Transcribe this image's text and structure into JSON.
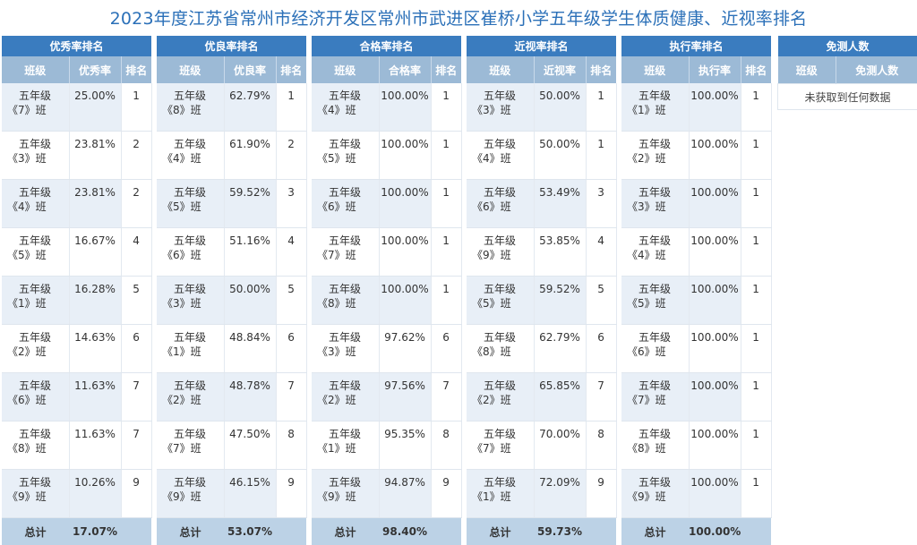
{
  "title": "2023年度江苏省常州市经济开发区常州市武进区崔桥小学五年级学生体质健康、近视率排名",
  "colors": {
    "header": "#3a7cbf",
    "subheader": "#9cbad6",
    "total": "#bcd2e6",
    "title": "#2b70b8"
  },
  "panels": [
    {
      "header": "优秀率排名",
      "col1": "班级",
      "col2": "优秀率",
      "col3": "排名",
      "rows": [
        {
          "grade": "五年级",
          "cls": "《7》班",
          "value": "25.00%",
          "rank": "1"
        },
        {
          "grade": "五年级",
          "cls": "《3》班",
          "value": "23.81%",
          "rank": "2"
        },
        {
          "grade": "五年级",
          "cls": "《4》班",
          "value": "23.81%",
          "rank": "2"
        },
        {
          "grade": "五年级",
          "cls": "《5》班",
          "value": "16.67%",
          "rank": "4"
        },
        {
          "grade": "五年级",
          "cls": "《1》班",
          "value": "16.28%",
          "rank": "5"
        },
        {
          "grade": "五年级",
          "cls": "《2》班",
          "value": "14.63%",
          "rank": "6"
        },
        {
          "grade": "五年级",
          "cls": "《6》班",
          "value": "11.63%",
          "rank": "7"
        },
        {
          "grade": "五年级",
          "cls": "《8》班",
          "value": "11.63%",
          "rank": "7"
        },
        {
          "grade": "五年级",
          "cls": "《9》班",
          "value": "10.26%",
          "rank": "9"
        }
      ],
      "total_label": "总计",
      "total_value": "17.07%"
    },
    {
      "header": "优良率排名",
      "col1": "班级",
      "col2": "优良率",
      "col3": "排名",
      "rows": [
        {
          "grade": "五年级",
          "cls": "《8》班",
          "value": "62.79%",
          "rank": "1"
        },
        {
          "grade": "五年级",
          "cls": "《4》班",
          "value": "61.90%",
          "rank": "2"
        },
        {
          "grade": "五年级",
          "cls": "《5》班",
          "value": "59.52%",
          "rank": "3"
        },
        {
          "grade": "五年级",
          "cls": "《6》班",
          "value": "51.16%",
          "rank": "4"
        },
        {
          "grade": "五年级",
          "cls": "《3》班",
          "value": "50.00%",
          "rank": "5"
        },
        {
          "grade": "五年级",
          "cls": "《1》班",
          "value": "48.84%",
          "rank": "6"
        },
        {
          "grade": "五年级",
          "cls": "《2》班",
          "value": "48.78%",
          "rank": "7"
        },
        {
          "grade": "五年级",
          "cls": "《7》班",
          "value": "47.50%",
          "rank": "8"
        },
        {
          "grade": "五年级",
          "cls": "《9》班",
          "value": "46.15%",
          "rank": "9"
        }
      ],
      "total_label": "总计",
      "total_value": "53.07%"
    },
    {
      "header": "合格率排名",
      "col1": "班级",
      "col2": "合格率",
      "col3": "排名",
      "rows": [
        {
          "grade": "五年级",
          "cls": "《4》班",
          "value": "100.00%",
          "rank": "1"
        },
        {
          "grade": "五年级",
          "cls": "《5》班",
          "value": "100.00%",
          "rank": "1"
        },
        {
          "grade": "五年级",
          "cls": "《6》班",
          "value": "100.00%",
          "rank": "1"
        },
        {
          "grade": "五年级",
          "cls": "《7》班",
          "value": "100.00%",
          "rank": "1"
        },
        {
          "grade": "五年级",
          "cls": "《8》班",
          "value": "100.00%",
          "rank": "1"
        },
        {
          "grade": "五年级",
          "cls": "《3》班",
          "value": "97.62%",
          "rank": "6"
        },
        {
          "grade": "五年级",
          "cls": "《2》班",
          "value": "97.56%",
          "rank": "7"
        },
        {
          "grade": "五年级",
          "cls": "《1》班",
          "value": "95.35%",
          "rank": "8"
        },
        {
          "grade": "五年级",
          "cls": "《9》班",
          "value": "94.87%",
          "rank": "9"
        }
      ],
      "total_label": "总计",
      "total_value": "98.40%"
    },
    {
      "header": "近视率排名",
      "col1": "班级",
      "col2": "近视率",
      "col3": "排名",
      "rows": [
        {
          "grade": "五年级",
          "cls": "《3》班",
          "value": "50.00%",
          "rank": "1"
        },
        {
          "grade": "五年级",
          "cls": "《4》班",
          "value": "50.00%",
          "rank": "1"
        },
        {
          "grade": "五年级",
          "cls": "《6》班",
          "value": "53.49%",
          "rank": "3"
        },
        {
          "grade": "五年级",
          "cls": "《9》班",
          "value": "53.85%",
          "rank": "4"
        },
        {
          "grade": "五年级",
          "cls": "《5》班",
          "value": "59.52%",
          "rank": "5"
        },
        {
          "grade": "五年级",
          "cls": "《8》班",
          "value": "62.79%",
          "rank": "6"
        },
        {
          "grade": "五年级",
          "cls": "《2》班",
          "value": "65.85%",
          "rank": "7"
        },
        {
          "grade": "五年级",
          "cls": "《7》班",
          "value": "70.00%",
          "rank": "8"
        },
        {
          "grade": "五年级",
          "cls": "《1》班",
          "value": "72.09%",
          "rank": "9"
        }
      ],
      "total_label": "总计",
      "total_value": "59.73%"
    },
    {
      "header": "执行率排名",
      "col1": "班级",
      "col2": "执行率",
      "col3": "排名",
      "rows": [
        {
          "grade": "五年级",
          "cls": "《1》班",
          "value": "100.00%",
          "rank": "1"
        },
        {
          "grade": "五年级",
          "cls": "《2》班",
          "value": "100.00%",
          "rank": "1"
        },
        {
          "grade": "五年级",
          "cls": "《3》班",
          "value": "100.00%",
          "rank": "1"
        },
        {
          "grade": "五年级",
          "cls": "《4》班",
          "value": "100.00%",
          "rank": "1"
        },
        {
          "grade": "五年级",
          "cls": "《5》班",
          "value": "100.00%",
          "rank": "1"
        },
        {
          "grade": "五年级",
          "cls": "《6》班",
          "value": "100.00%",
          "rank": "1"
        },
        {
          "grade": "五年级",
          "cls": "《7》班",
          "value": "100.00%",
          "rank": "1"
        },
        {
          "grade": "五年级",
          "cls": "《8》班",
          "value": "100.00%",
          "rank": "1"
        },
        {
          "grade": "五年级",
          "cls": "《9》班",
          "value": "100.00%",
          "rank": "1"
        }
      ],
      "total_label": "总计",
      "total_value": "100.00%"
    }
  ],
  "exempt": {
    "header": "免测人数",
    "col1": "班级",
    "col2": "免测人数",
    "empty_text": "未获取到任何数据"
  }
}
